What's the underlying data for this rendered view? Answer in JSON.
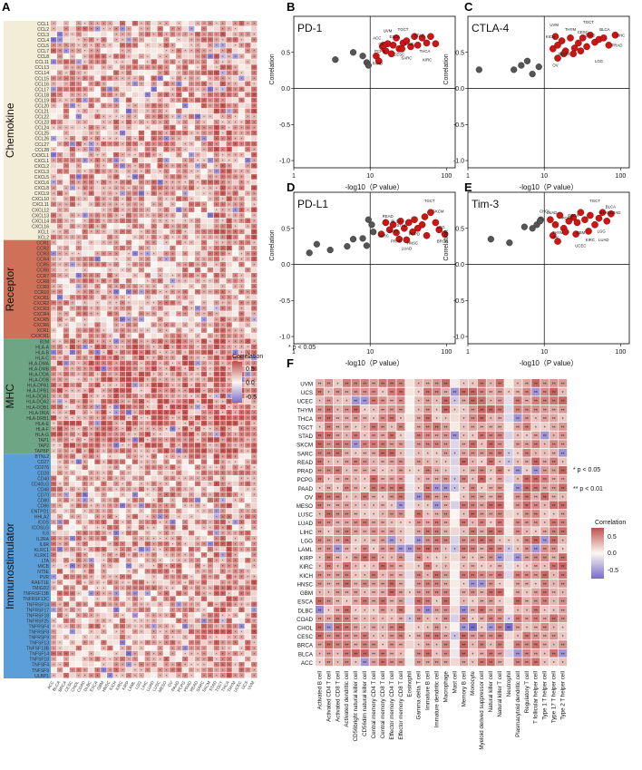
{
  "panels": {
    "A": "A",
    "B": "B",
    "C": "C",
    "D": "D",
    "E": "E",
    "F": "F"
  },
  "sig_note": "* p < 0.05",
  "sig_notes_f": [
    "* p < 0.05",
    "** p < 0.01"
  ],
  "legend": {
    "title": "Correlation",
    "ticks_a": [
      "0.5",
      "0.0",
      "-0.5"
    ],
    "ticks_f": [
      "0.5",
      "0.0",
      "-0.5"
    ]
  },
  "colors": {
    "chemokine": "#f1edd6",
    "receptor": "#cf7058",
    "mhc": "#6ea584",
    "immunostimulator": "#5b9ed8",
    "pos": "#c0504d",
    "neg": "#6a5cc4",
    "point_red": "#cc1515",
    "point_gray": "#555555"
  },
  "groups": [
    {
      "name": "Chemokine",
      "genes": [
        "CCL1",
        "CCL2",
        "CCL3",
        "CCL4",
        "CCL5",
        "CCL7",
        "CCL8",
        "CCL11",
        "CCL13",
        "CCL14",
        "CCL15",
        "CCL16",
        "CCL17",
        "CCL18",
        "CCL19",
        "CCL20",
        "CCL21",
        "CCL22",
        "CCL23",
        "CCL24",
        "CCL25",
        "CCL26",
        "CCL27",
        "CCL28",
        "CX3CL1",
        "CXCL1",
        "CXCL2",
        "CXCL3",
        "CXCL5",
        "CXCL6",
        "CXCL8",
        "CXCL9",
        "CXCL10",
        "CXCL11",
        "CXCL12",
        "CXCL13",
        "CXCL14",
        "CXCL16",
        "XCL1",
        "XCL2"
      ]
    },
    {
      "name": "Receptor",
      "genes": [
        "CCR1",
        "CCR2",
        "CCR3",
        "CCR4",
        "CCR5",
        "CCR6",
        "CCR7",
        "CCR8",
        "CCR9",
        "CCR10",
        "CXCR1",
        "CXCR2",
        "CXCR3",
        "CXCR4",
        "CXCR5",
        "CXCR6",
        "XCR1",
        "CX3CR1"
      ]
    },
    {
      "name": "MHC",
      "genes": [
        "B2M",
        "HLA-A",
        "HLA-B",
        "HLA-C",
        "HLA-DMA",
        "HLA-DMB",
        "HLA-DOA",
        "HLA-DOB",
        "HLA-DPA1",
        "HLA-DPB1",
        "HLA-DQA1",
        "HLA-DQA2",
        "HLA-DQB1",
        "HLA-DRA",
        "HLA-DRB1",
        "HLA-E",
        "HLA-F",
        "HLA-G",
        "TAP1",
        "TAP2",
        "TAPBP"
      ]
    },
    {
      "name": "Immunostimulator",
      "genes": [
        "BTNL2",
        "CD27",
        "CD276",
        "CD28",
        "CD40",
        "CD40LG",
        "CD48",
        "CD70",
        "CD80",
        "CD86",
        "ENTPD1",
        "HHLA2",
        "ICOS",
        "ICOSLG",
        "IL6",
        "IL2RA",
        "IL6R",
        "KLRC1",
        "KLRK1",
        "LTA",
        "MICB",
        "NT5E",
        "PVR",
        "RAET1E",
        "TMIGD2",
        "TNFRSF13B",
        "TNFRSF13C",
        "TNFRSF14",
        "TNFRSF17",
        "TNFRSF18",
        "TNFRSF25",
        "TNFRSF4",
        "TNFRSF8",
        "TNFRSF9",
        "TNFSF13",
        "TNFSF13B",
        "TNFSF14",
        "TNFSF18",
        "TNFSF4",
        "TNFSF9",
        "ULBP1"
      ]
    }
  ],
  "cancers_a": [
    "ACC",
    "BLCA",
    "BRCA",
    "CESC",
    "CHOL",
    "COAD",
    "DLBC",
    "ESCA",
    "GBM",
    "HNSC",
    "KICH",
    "KIRC",
    "KIRP",
    "LAML",
    "LGG",
    "LIHC",
    "LUAD",
    "LUSC",
    "MESO",
    "OV",
    "PAAD",
    "PCPG",
    "PRAD",
    "READ",
    "SARC",
    "SKCM",
    "STAD",
    "TGCT",
    "THCA",
    "THYM",
    "UCEC",
    "UCS",
    "UVM"
  ],
  "scatter_panels": [
    {
      "label": "B",
      "title": "PD-1",
      "xlabel": "-log10（P value）",
      "ylabel": "Correlation",
      "xticks": [
        "1",
        "10",
        "100"
      ],
      "yticks": [
        "0.5",
        "0.0",
        "-0.5",
        "-1.0"
      ],
      "red": [
        [
          14.5,
          0.58
        ],
        [
          16,
          0.52
        ],
        [
          17,
          0.62
        ],
        [
          19,
          0.48
        ],
        [
          22,
          0.7
        ],
        [
          24,
          0.55
        ],
        [
          27,
          0.63
        ],
        [
          30,
          0.66
        ],
        [
          34,
          0.58
        ],
        [
          38,
          0.72
        ],
        [
          42,
          0.6
        ],
        [
          48,
          0.7
        ],
        [
          55,
          0.63
        ],
        [
          62,
          0.72
        ],
        [
          72,
          0.62
        ],
        [
          12,
          0.45
        ],
        [
          13,
          0.38
        ],
        [
          15,
          0.6
        ],
        [
          20,
          0.6
        ],
        [
          26,
          0.55
        ]
      ],
      "gray": [
        [
          3.5,
          0.4
        ],
        [
          6,
          0.5
        ],
        [
          8,
          0.45
        ],
        [
          9,
          0.36
        ],
        [
          9.5,
          0.32
        ]
      ],
      "tags": [
        [
          "ACC",
          12.3,
          0.68
        ],
        [
          "UVM",
          17,
          0.78
        ],
        [
          "TGCT",
          27,
          0.8
        ],
        [
          "ESCA",
          21,
          0.7
        ],
        [
          "STAD",
          44,
          0.72
        ],
        [
          "OV",
          14,
          0.6
        ],
        [
          "PCPG",
          13.5,
          0.5
        ],
        [
          "LIHC",
          33,
          0.6
        ],
        [
          "THCA",
          52,
          0.5
        ],
        [
          "CESC",
          24,
          0.45
        ],
        [
          "SARC",
          30,
          0.4
        ],
        [
          "KIRC",
          56,
          0.38
        ],
        [
          "PAAD",
          12.5,
          0.33
        ]
      ]
    },
    {
      "label": "C",
      "title": "CTLA-4",
      "xlabel": "-log10（P value）",
      "ylabel": "Correlation",
      "xticks": [
        "1",
        "10",
        "100"
      ],
      "yticks": [
        "0.5",
        "0.0",
        "-0.5",
        "-1.0"
      ],
      "red": [
        [
          14,
          0.72
        ],
        [
          15,
          0.6
        ],
        [
          17,
          0.66
        ],
        [
          19,
          0.52
        ],
        [
          22,
          0.7
        ],
        [
          25,
          0.56
        ],
        [
          28,
          0.63
        ],
        [
          32,
          0.7
        ],
        [
          36,
          0.58
        ],
        [
          40,
          0.74
        ],
        [
          46,
          0.64
        ],
        [
          52,
          0.68
        ],
        [
          60,
          0.7
        ],
        [
          70,
          0.6
        ],
        [
          85,
          0.74
        ],
        [
          13,
          0.55
        ],
        [
          15,
          0.42
        ],
        [
          18,
          0.48
        ],
        [
          24,
          0.48
        ],
        [
          30,
          0.52
        ]
      ],
      "gray": [
        [
          1.4,
          0.26
        ],
        [
          4,
          0.26
        ],
        [
          5,
          0.32
        ],
        [
          6,
          0.38
        ],
        [
          7,
          0.2
        ],
        [
          8.5,
          0.3
        ]
      ],
      "tags": [
        [
          "UVM",
          13.5,
          0.86
        ],
        [
          "THYM",
          22,
          0.8
        ],
        [
          "TGCT",
          38,
          0.9
        ],
        [
          "CESC",
          32,
          0.76
        ],
        [
          "STAD",
          40,
          0.72
        ],
        [
          "BLCA",
          62,
          0.8
        ],
        [
          "LIHC",
          100,
          0.72
        ],
        [
          "PRAD",
          90,
          0.58
        ],
        [
          "SKCM",
          18,
          0.46
        ],
        [
          "LGG",
          52,
          0.36
        ],
        [
          "OV",
          14,
          0.3
        ],
        [
          "KICH",
          12,
          0.7
        ]
      ]
    },
    {
      "label": "D",
      "title": "PD-L1",
      "xlabel": "-log10（P value）",
      "ylabel": "Correlation",
      "xticks": [
        "1",
        "10",
        "100"
      ],
      "yticks": [
        "0.5",
        "0.0",
        "-0.5",
        "-1.0"
      ],
      "red": [
        [
          16,
          0.58
        ],
        [
          18,
          0.48
        ],
        [
          20,
          0.55
        ],
        [
          22,
          0.44
        ],
        [
          25,
          0.6
        ],
        [
          28,
          0.5
        ],
        [
          32,
          0.58
        ],
        [
          36,
          0.45
        ],
        [
          42,
          0.5
        ],
        [
          48,
          0.55
        ],
        [
          55,
          0.4
        ],
        [
          62,
          0.72
        ],
        [
          72,
          0.58
        ],
        [
          80,
          0.48
        ],
        [
          95,
          0.42
        ],
        [
          14,
          0.42
        ],
        [
          24,
          0.35
        ],
        [
          30,
          0.34
        ],
        [
          38,
          0.62
        ],
        [
          52,
          0.66
        ]
      ],
      "gray": [
        [
          1.6,
          0.16
        ],
        [
          2,
          0.28
        ],
        [
          3,
          0.2
        ],
        [
          5,
          0.25
        ],
        [
          6,
          0.35
        ],
        [
          8,
          0.36
        ],
        [
          9,
          0.26
        ],
        [
          10.5,
          0.55
        ],
        [
          11,
          0.45
        ],
        [
          9.5,
          0.62
        ]
      ],
      "tags": [
        [
          "TGCT",
          60,
          0.86
        ],
        [
          "SKCM",
          78,
          0.72
        ],
        [
          "READ",
          17,
          0.65
        ],
        [
          "BLCA",
          22,
          0.58
        ],
        [
          "STAD",
          26,
          0.52
        ],
        [
          "LIHC",
          20,
          0.44
        ],
        [
          "LGG",
          84,
          0.5
        ],
        [
          "SARC",
          15,
          0.38
        ],
        [
          "PCPD",
          38,
          0.4
        ],
        [
          "HNSC",
          36,
          0.28
        ],
        [
          "LUAD",
          30,
          0.2
        ],
        [
          "BRCA",
          88,
          0.3
        ],
        [
          "PRAD",
          22,
          0.3
        ]
      ]
    },
    {
      "label": "E",
      "title": "Tim-3",
      "xlabel": "-log10（P value）",
      "ylabel": "Correlation",
      "xticks": [
        "1",
        "10",
        "100"
      ],
      "yticks": [
        "0.5",
        "0.0",
        "-0.5",
        "-1.0"
      ],
      "red": [
        [
          12,
          0.62
        ],
        [
          14,
          0.55
        ],
        [
          16,
          0.68
        ],
        [
          18,
          0.5
        ],
        [
          21,
          0.6
        ],
        [
          24,
          0.65
        ],
        [
          27,
          0.58
        ],
        [
          30,
          0.72
        ],
        [
          34,
          0.62
        ],
        [
          40,
          0.68
        ],
        [
          46,
          0.55
        ],
        [
          52,
          0.64
        ],
        [
          58,
          0.72
        ],
        [
          66,
          0.6
        ],
        [
          75,
          0.7
        ],
        [
          13,
          0.4
        ],
        [
          15,
          0.32
        ],
        [
          19,
          0.45
        ],
        [
          26,
          0.42
        ],
        [
          38,
          0.46
        ]
      ],
      "gray": [
        [
          2,
          0.35
        ],
        [
          3.5,
          0.3
        ],
        [
          5.5,
          0.52
        ],
        [
          7,
          0.5
        ],
        [
          8,
          0.55
        ],
        [
          9,
          0.62
        ],
        [
          8.8,
          0.6
        ]
      ],
      "tags": [
        [
          "CHOL",
          10.2,
          0.72
        ],
        [
          "LUAD",
          12.6,
          0.7
        ],
        [
          "ESCA",
          24,
          0.66
        ],
        [
          "TGCT",
          46,
          0.86
        ],
        [
          "BLCA",
          74,
          0.78
        ],
        [
          "STAD",
          62,
          0.7
        ],
        [
          "LOAD",
          85,
          0.7
        ],
        [
          "PCPG",
          20,
          0.62
        ],
        [
          "OV",
          14,
          0.36
        ],
        [
          "THYM",
          15,
          0.42
        ],
        [
          "GBM",
          30,
          0.42
        ],
        [
          "UCEC",
          30,
          0.24
        ],
        [
          "KIRC",
          40,
          0.32
        ],
        [
          "LGG",
          56,
          0.44
        ],
        [
          "LUAD",
          60,
          0.32
        ]
      ]
    }
  ],
  "f_panel": {
    "cancers": [
      "UVM",
      "UCS",
      "UCEC",
      "THYM",
      "THCA",
      "TGCT",
      "STAD",
      "SKCM",
      "SARC",
      "READ",
      "PRAD",
      "PCPG",
      "PAAD",
      "OV",
      "MESO",
      "LUSC",
      "LUAD",
      "LIHC",
      "LGG",
      "LAML",
      "KIRP",
      "KIRC",
      "KICH",
      "HNSC",
      "GBM",
      "ESCA",
      "DLBC",
      "COAD",
      "CHOL",
      "CESC",
      "BRCA",
      "BLCA",
      "ACC"
    ],
    "cells": [
      "Activated B cell",
      "Activated CD4 T cell",
      "Activated CD8 T cell",
      "Activated dendritic cell",
      "CD56bright natural killer cell",
      "CD56dim natural killer cell",
      "Central memory CD4 T cell",
      "Central memory CD8 T cell",
      "Effector memory CD4 T cell",
      "Effector memory CD8 T cell",
      "Eosinophil",
      "Gamma delta T cell",
      "Immature  B cell",
      "Immature dendritic cell",
      "Macrophage",
      "Mast cell",
      "Memory B cell",
      "Monocyte",
      "Myeloid derived suppressor cell",
      "Natural killer cell",
      "Natural killer T cell",
      "Neutrophil",
      "Plasmacytoid dendritic cell",
      "Regulatory T cell",
      "T follicular helper cell",
      "Type 1 T helper cell",
      "Type 17 T helper cell",
      "Type 2 T helper cell"
    ]
  }
}
